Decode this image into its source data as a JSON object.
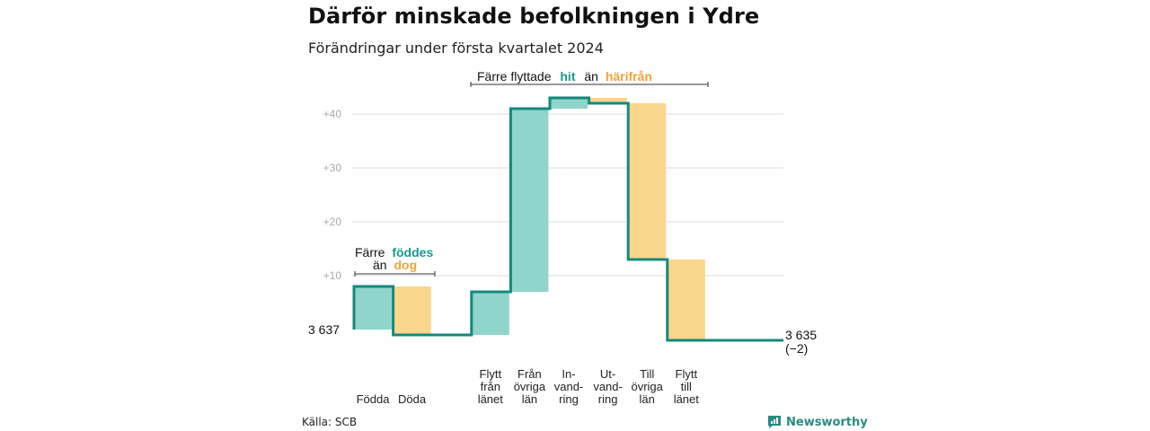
{
  "title": "Därför minskade befolkningen i Ydre",
  "subtitle": "Förändringar under första kvartalet 2024",
  "source": "Källa: SCB",
  "brand": "Newsworthy",
  "colors": {
    "increase": "#8fd5cb",
    "decrease": "#fad68c",
    "line": "#14897b",
    "accent_teal": "#169b8c",
    "accent_orange": "#f2a33a",
    "grid": "#dddddd"
  },
  "annotations": {
    "births": {
      "line1_prefix": "Färre",
      "line1_highlight": "föddes",
      "line2_prefix": "än",
      "line2_highlight": "dog"
    },
    "migration": {
      "prefix": "Färre flyttade",
      "highlight1": "hit",
      "middle": "än",
      "highlight2": "härifrån"
    }
  },
  "chart_data": {
    "type": "waterfall",
    "title": "Därför minskade befolkningen i Ydre",
    "subtitle": "Förändringar under första kvartalet 2024",
    "start_label": "3 637",
    "end_label": "3 635",
    "end_change_label": "(−2)",
    "start_value": 3637,
    "end_value": 3635,
    "y_ticks": [
      "+10",
      "+20",
      "+30",
      "+40"
    ],
    "y_tick_values": [
      10,
      20,
      30,
      40
    ],
    "ylim": [
      -3,
      43
    ],
    "grid": true,
    "categories": [
      {
        "label": [
          "Födda"
        ],
        "change": 8
      },
      {
        "label": [
          "Döda"
        ],
        "change": -9
      },
      {
        "label": [],
        "change": 0
      },
      {
        "label": [
          "Flytt",
          "från",
          "länet"
        ],
        "change": 8
      },
      {
        "label": [
          "Från",
          "övriga",
          "län"
        ],
        "change": 34
      },
      {
        "label": [
          "In-",
          "vand-",
          "ring"
        ],
        "change": 2
      },
      {
        "label": [
          "Ut-",
          "vand-",
          "ring"
        ],
        "change": -1
      },
      {
        "label": [
          "Till",
          "övriga",
          "län"
        ],
        "change": -29
      },
      {
        "label": [
          "Flytt",
          "till",
          "länet"
        ],
        "change": -15
      }
    ]
  }
}
